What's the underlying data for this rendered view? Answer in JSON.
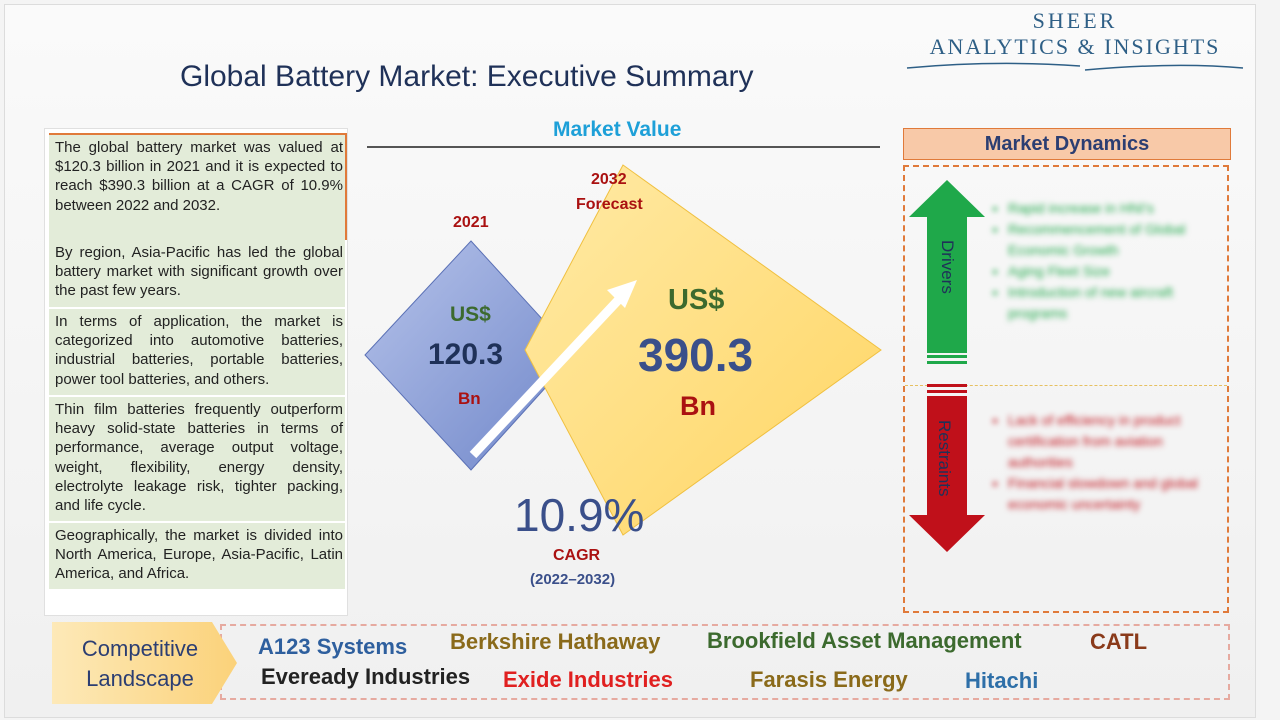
{
  "logo": {
    "line1": "SHEER",
    "line2": "ANALYTICS & INSIGHTS"
  },
  "title": "Global Battery Market: Executive Summary",
  "summary_points": [
    "The global battery market was valued at $120.3 billion in 2021 and it is expected to reach $390.3 billion at a CAGR of 10.9% between 2022 and 2032.",
    "By region, Asia-Pacific has led the global battery market with significant growth over the past few years.",
    "In terms of application, the market is categorized into automotive batteries, industrial batteries, portable batteries, power tool batteries, and others.",
    "Thin film batteries frequently outperform heavy solid-state batteries in terms of performance, average output voltage, weight, flexibility, energy density, electrolyte leakage risk, tighter packing, and life cycle.",
    "Geographically, the market is divided into North America, Europe, Asia-Pacific, Latin America, and Africa."
  ],
  "market_value": {
    "heading": "Market Value",
    "y2021": {
      "year": "2021",
      "currency": "US$",
      "value": "120.3",
      "unit": "Bn"
    },
    "y2032": {
      "year": "2032",
      "label": "Forecast",
      "currency": "US$",
      "value": "390.3",
      "unit": "Bn"
    },
    "cagr": {
      "value": "10.9%",
      "label": "CAGR",
      "period": "(2022–2032)"
    }
  },
  "dynamics": {
    "heading": "Market Dynamics",
    "drivers_label": "Drivers",
    "restraints_label": "Restraints",
    "drivers": [
      "Rapid increase in HNI's",
      "Recommencement of Global Economic Growth",
      "Aging Fleet Size",
      "Introduction of new aircraft programs"
    ],
    "restraints": [
      "Lack of efficiency in product certification from aviation authorities",
      "Financial slowdown and global economic uncertainty"
    ]
  },
  "competitive": {
    "label_line1": "Competitive",
    "label_line2": "Landscape",
    "companies": [
      {
        "name": "A123 Systems",
        "color": "#2e5f9e"
      },
      {
        "name": "Berkshire Hathaway",
        "color": "#8a6a1a"
      },
      {
        "name": "Brookfield Asset Management",
        "color": "#3c6a2e"
      },
      {
        "name": "CATL",
        "color": "#8a3a1a"
      },
      {
        "name": "Eveready Industries",
        "color": "#222222"
      },
      {
        "name": "Exide Industries",
        "color": "#e02020"
      },
      {
        "name": "Farasis Energy",
        "color": "#8a6a1a"
      },
      {
        "name": "Hitachi",
        "color": "#2e6fa8"
      }
    ]
  },
  "colors": {
    "green_box": "#e3ecd9",
    "accent_orange": "#e07a3a",
    "navy": "#1f3158"
  }
}
